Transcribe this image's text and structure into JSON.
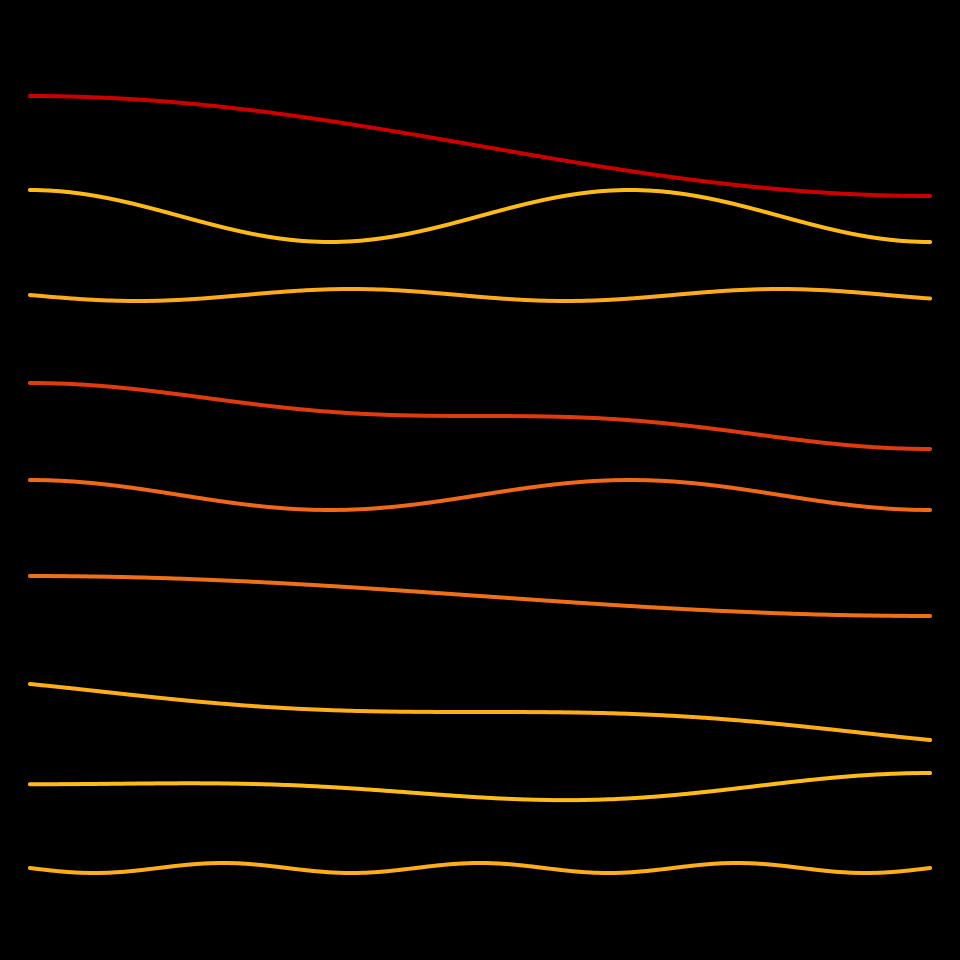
{
  "background": "#000000",
  "curves": [
    {
      "name": "wave-1",
      "color": "#cc0000",
      "width": 4,
      "start": 0.0,
      "freq": 0.5,
      "harmonics": [
        {
          "k": 1,
          "a": 1.0,
          "p": 0.0
        }
      ]
    },
    {
      "name": "wave-2",
      "color": "#ffba18",
      "width": 4,
      "start": 0.0,
      "freq": 1.5,
      "harmonics": [
        {
          "k": 1,
          "a": 1.0,
          "p": 0.0
        }
      ]
    },
    {
      "name": "wave-3",
      "color": "#ffaa1a",
      "width": 4,
      "start": 0.0,
      "freq": 2.1,
      "harmonics": [
        {
          "k": 1,
          "a": 1.0,
          "p": 0.25
        }
      ]
    },
    {
      "name": "wave-4",
      "color": "#e03a0e",
      "width": 4,
      "start": 0.0,
      "freq": 0.5,
      "harmonics": [
        {
          "k": 1,
          "a": 1.0,
          "p": 0.0
        },
        {
          "k": 3,
          "a": 0.33,
          "p": 0.0
        }
      ]
    },
    {
      "name": "wave-5",
      "color": "#f06818",
      "width": 4,
      "start": 0.0,
      "freq": 1.5,
      "harmonics": [
        {
          "k": 1,
          "a": 1.0,
          "p": 0.0
        }
      ]
    },
    {
      "name": "wave-6",
      "color": "#f07018",
      "width": 4,
      "start": 0.0,
      "freq": 0.5,
      "harmonics": [
        {
          "k": 1,
          "a": 1.0,
          "p": 0.0
        }
      ]
    },
    {
      "name": "wave-7",
      "color": "#ffae1a",
      "width": 4,
      "start": 0.0,
      "freq": 0.5,
      "harmonics": [
        {
          "k": 1,
          "a": 1.0,
          "p": 0.0
        },
        {
          "k": 2,
          "a": 0.5,
          "p": 0.25
        }
      ]
    },
    {
      "name": "wave-8",
      "color": "#ffbb18",
      "width": 4,
      "start": 0.0,
      "freq": 0.5,
      "harmonics": [
        {
          "k": 2,
          "a": 1.0,
          "p": 0.0
        },
        {
          "k": 3,
          "a": 0.6,
          "p": 0.5
        }
      ]
    },
    {
      "name": "wave-9",
      "color": "#ffae1a",
      "width": 4,
      "start": 0.0,
      "freq": 3.5,
      "harmonics": [
        {
          "k": 1,
          "a": 1.0,
          "p": 0.25
        }
      ]
    }
  ]
}
